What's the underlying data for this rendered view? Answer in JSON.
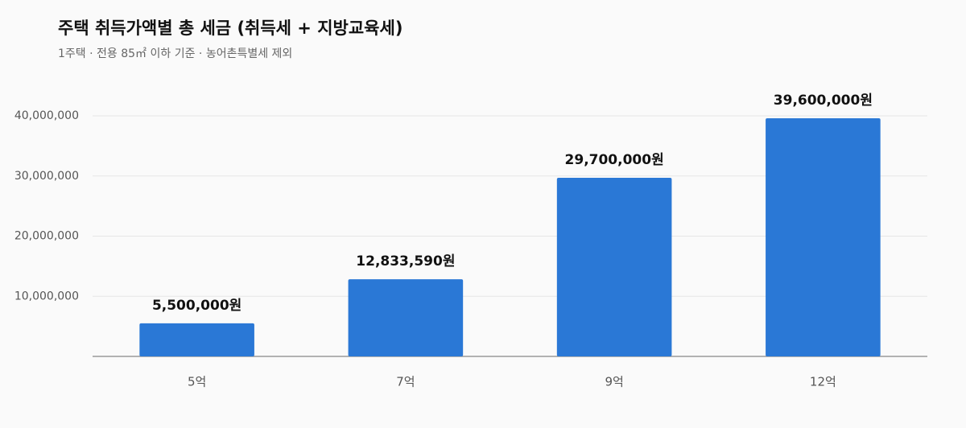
{
  "chart_data": {
    "type": "bar",
    "title": "주택 취득가액별 총 세금 (취득세 + 지방교육세)",
    "subtitle": "1주택 · 전용 85㎡ 이하 기준 · 농어촌특별세 제외",
    "categories": [
      "5억",
      "7억",
      "9억",
      "12억"
    ],
    "values": [
      5500000,
      12833590,
      29700000,
      39600000
    ],
    "value_labels": [
      "5,500,000원",
      "12,833,590원",
      "29,700,000원",
      "39,600,000원"
    ],
    "color": "#2a78d6",
    "ylim": [
      0,
      40000000
    ],
    "yticks": [
      {
        "value": 10000000,
        "label": "10,000,000"
      },
      {
        "value": 20000000,
        "label": "20,000,000"
      },
      {
        "value": 30000000,
        "label": "30,000,000"
      },
      {
        "value": 40000000,
        "label": "40,000,000"
      }
    ],
    "grid": true
  }
}
